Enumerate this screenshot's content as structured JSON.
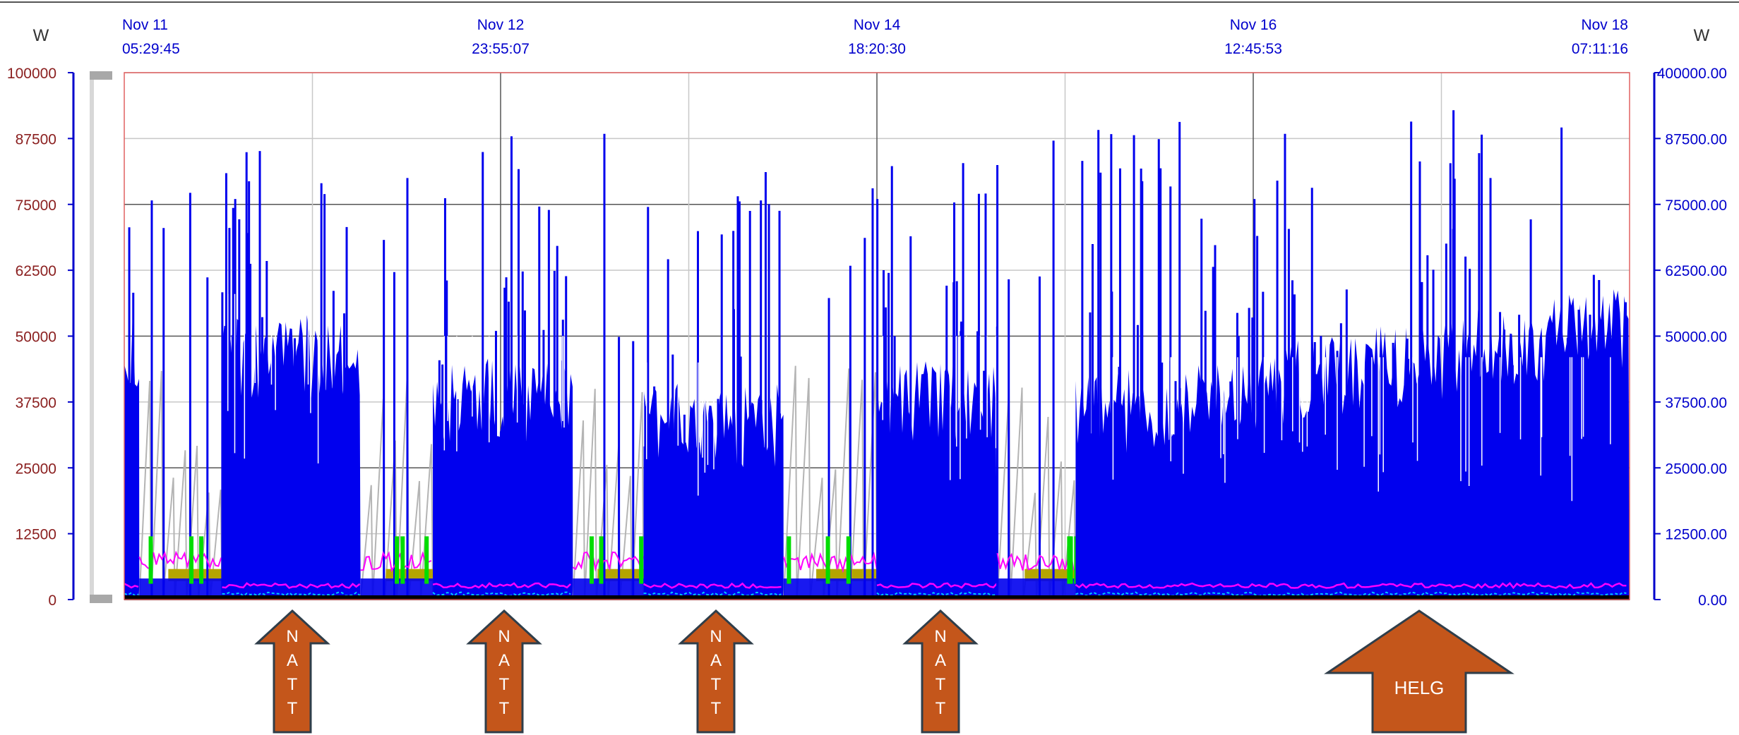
{
  "chart_data": {
    "type": "area",
    "left_axis": {
      "unit": "W",
      "ylim": [
        0,
        100000
      ],
      "ticks": [
        "100000",
        "87500",
        "75000",
        "62500",
        "50000",
        "37500",
        "25000",
        "12500",
        "0"
      ]
    },
    "right_axis": {
      "unit": "W",
      "ylim": [
        0,
        400000
      ],
      "ticks": [
        "400000.00",
        "87500.00",
        "75000.00",
        "62500.00",
        "50000.00",
        "37500.00",
        "25000.00",
        "12500.00",
        "0.00"
      ]
    },
    "x_ticks": [
      {
        "date": "Nov 11",
        "time": "05:29:45"
      },
      {
        "date": "Nov 12",
        "time": "23:55:07"
      },
      {
        "date": "Nov 14",
        "time": "18:20:30"
      },
      {
        "date": "Nov 16",
        "time": "12:45:53"
      },
      {
        "date": "Nov 18",
        "time": "07:11:16"
      }
    ],
    "grid": true,
    "colors": {
      "blue_series": "#0000ee",
      "gray_series": "#b4b4b4",
      "magenta_series": "#ff00ff",
      "olive_series": "#b5a500",
      "green_series": "#00dd00",
      "cyan_series": "#00c8ff",
      "axis": "#0000cc",
      "frame": "#e06060",
      "tick_text": "#8b2020"
    },
    "segments": [
      {
        "kind": "night",
        "start": 0.0,
        "end": 0.01,
        "base": 48000,
        "peak": 90000
      },
      {
        "kind": "day",
        "start": 0.01,
        "end": 0.065
      },
      {
        "kind": "night",
        "start": 0.065,
        "end": 0.157,
        "base": 46000,
        "peak": 91000
      },
      {
        "kind": "day",
        "start": 0.157,
        "end": 0.205
      },
      {
        "kind": "night",
        "start": 0.205,
        "end": 0.298,
        "base": 38000,
        "peak": 90000
      },
      {
        "kind": "day",
        "start": 0.298,
        "end": 0.345
      },
      {
        "kind": "night",
        "start": 0.345,
        "end": 0.438,
        "base": 33000,
        "peak": 90000
      },
      {
        "kind": "day",
        "start": 0.438,
        "end": 0.5
      },
      {
        "kind": "night",
        "start": 0.5,
        "end": 0.58,
        "base": 38000,
        "peak": 85000
      },
      {
        "kind": "day",
        "start": 0.58,
        "end": 0.632
      },
      {
        "kind": "weekend",
        "start": 0.632,
        "end": 1.0,
        "base": 34000,
        "peak": 93000
      }
    ]
  },
  "annotations": [
    {
      "label": "NATT",
      "letters": [
        "N",
        "A",
        "T",
        "T"
      ]
    },
    {
      "label": "NATT",
      "letters": [
        "N",
        "A",
        "T",
        "T"
      ]
    },
    {
      "label": "NATT",
      "letters": [
        "N",
        "A",
        "T",
        "T"
      ]
    },
    {
      "label": "NATT",
      "letters": [
        "N",
        "A",
        "T",
        "T"
      ]
    },
    {
      "label": "HELG"
    }
  ]
}
